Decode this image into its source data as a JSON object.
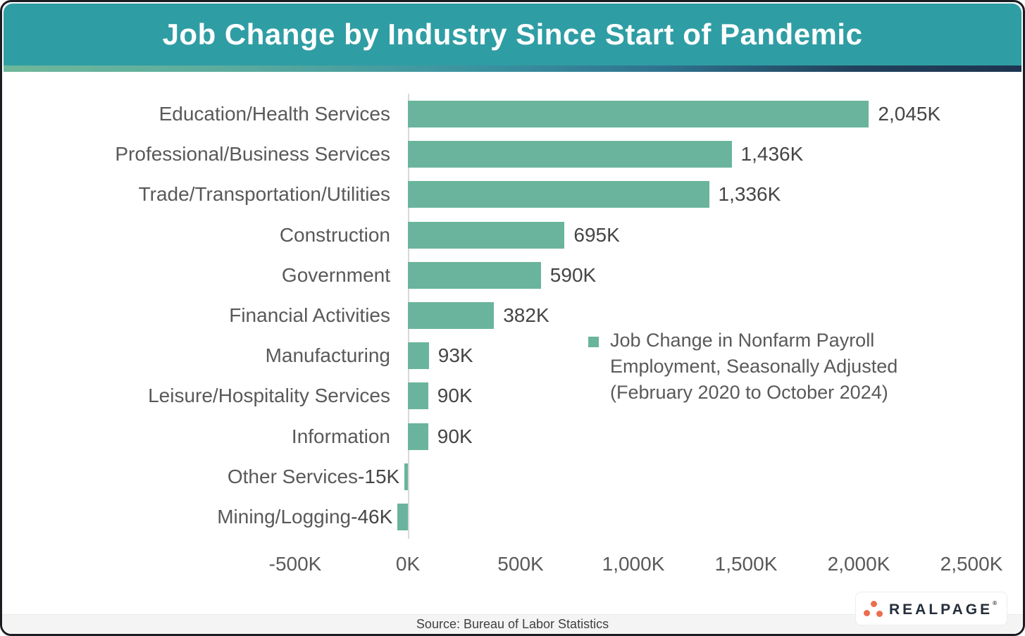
{
  "header": {
    "title": "Job Change by Industry Since Start of Pandemic"
  },
  "chart_data": {
    "type": "bar",
    "orientation": "horizontal",
    "title": "Job Change by Industry Since Start of Pandemic",
    "categories": [
      "Education/Health Services",
      "Professional/Business Services",
      "Trade/Transportation/Utilities",
      "Construction",
      "Government",
      "Financial Activities",
      "Manufacturing",
      "Leisure/Hospitality Services",
      "Information",
      "Other Services",
      "Mining/Logging"
    ],
    "values": [
      2045,
      1436,
      1336,
      695,
      590,
      382,
      93,
      90,
      90,
      -15,
      -46
    ],
    "value_labels": [
      "2,045K",
      "1,436K",
      "1,336K",
      "695K",
      "590K",
      "382K",
      "93K",
      "90K",
      "90K",
      "-15K",
      "-46K"
    ],
    "unit": "thousands of jobs (K)",
    "xlim": [
      -500,
      2500
    ],
    "x_ticks": [
      "-500K",
      "0K",
      "500K",
      "1,000K",
      "1,500K",
      "2,000K",
      "2,500K"
    ],
    "grid": false,
    "legend_position": "center-right",
    "legend_lines": [
      "Job Change in Nonfarm Payroll",
      "Employment, Seasonally Adjusted",
      "(February 2020 to October 2024)"
    ]
  },
  "footer": {
    "source": "Source: Bureau of Labor Statistics"
  },
  "logo": {
    "brand": "REALPAGE",
    "registered_mark": "®"
  },
  "colors": {
    "header_bg": "#2F9DA4",
    "bar": "#6AB49D",
    "logo_orange": "#EA6E4E",
    "gradient_left": "#6FB79A",
    "gradient_right": "#1D3450",
    "label_text": "#595959",
    "value_text": "#454545"
  }
}
